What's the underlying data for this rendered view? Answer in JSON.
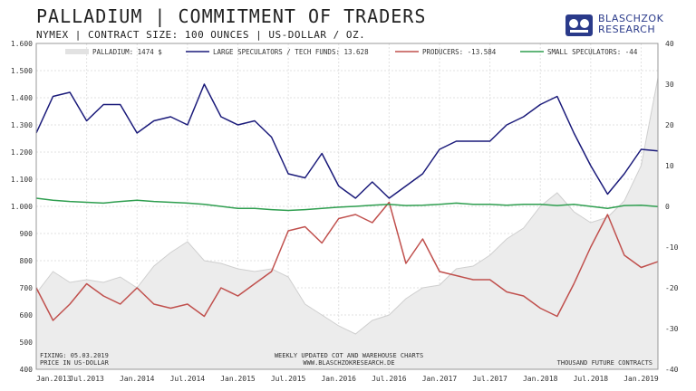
{
  "header": {
    "title": "PALLADIUM | COMMITMENT OF TRADERS",
    "subtitle": "NYMEX | CONTRACT SIZE: 100 OUNCES | US-DOLLAR / OZ."
  },
  "logo": {
    "line1": "BLASCHZOK",
    "line2": "RESEARCH"
  },
  "chart_data": {
    "type": "line",
    "x": [
      "2013-01",
      "2013-03",
      "2013-05",
      "2013-07",
      "2013-09",
      "2013-11",
      "2014-01",
      "2014-03",
      "2014-05",
      "2014-07",
      "2014-09",
      "2014-11",
      "2015-01",
      "2015-03",
      "2015-05",
      "2015-07",
      "2015-09",
      "2015-11",
      "2016-01",
      "2016-03",
      "2016-05",
      "2016-07",
      "2016-09",
      "2016-11",
      "2017-01",
      "2017-03",
      "2017-05",
      "2017-07",
      "2017-09",
      "2017-11",
      "2018-01",
      "2018-03",
      "2018-05",
      "2018-07",
      "2018-09",
      "2018-11",
      "2019-01",
      "2019-03"
    ],
    "series": [
      {
        "name": "PALLADIUM: 1474 $",
        "axis": "left",
        "style": "area",
        "color": "#d3d3d3",
        "values": [
          680,
          760,
          720,
          730,
          720,
          740,
          700,
          780,
          830,
          870,
          800,
          790,
          770,
          760,
          770,
          740,
          640,
          600,
          560,
          530,
          580,
          600,
          660,
          700,
          710,
          770,
          780,
          820,
          880,
          920,
          1000,
          1050,
          980,
          940,
          960,
          1020,
          1150,
          1474
        ]
      },
      {
        "name": "LARGE SPECULATORS / TECH FUNDS: 13.628",
        "axis": "right",
        "style": "line",
        "color": "#1a1a7a",
        "values": [
          18,
          27,
          28,
          21,
          25,
          25,
          18,
          21,
          22,
          20,
          30,
          22,
          20,
          21,
          17,
          8,
          7,
          13,
          5,
          2,
          6,
          2,
          5,
          8,
          14,
          16,
          16,
          16,
          20,
          22,
          25,
          27,
          18,
          10,
          3,
          8,
          14,
          13.628
        ]
      },
      {
        "name": "PRODUCERS: -13.584",
        "axis": "right",
        "style": "line",
        "color": "#c0504d",
        "values": [
          -20,
          -28,
          -24,
          -19,
          -22,
          -24,
          -20,
          -24,
          -25,
          -24,
          -27,
          -20,
          -22,
          -19,
          -16,
          -6,
          -5,
          -9,
          -3,
          -2,
          -4,
          1,
          -14,
          -8,
          -16,
          -17,
          -18,
          -18,
          -21,
          -22,
          -25,
          -27,
          -19,
          -10,
          -2,
          -12,
          -15,
          -13.584
        ]
      },
      {
        "name": "SMALL SPECULATORS: -44",
        "axis": "right",
        "style": "line",
        "color": "#2e9e4f",
        "values": [
          2,
          1.5,
          1.2,
          1,
          0.8,
          1.2,
          1.5,
          1.2,
          1,
          0.8,
          0.5,
          0,
          -0.5,
          -0.5,
          -0.8,
          -1,
          -0.8,
          -0.5,
          -0.2,
          0,
          0.3,
          0.5,
          0.2,
          0.3,
          0.5,
          0.8,
          0.5,
          0.5,
          0.3,
          0.5,
          0.5,
          0.2,
          0.5,
          0,
          -0.5,
          0.2,
          0.3,
          -0.044
        ]
      }
    ],
    "ylim_left": [
      400,
      1600
    ],
    "ylim_right": [
      -40,
      40
    ],
    "left_ticks": [
      "400",
      "500",
      "600",
      "700",
      "800",
      "900",
      "1.000",
      "1.100",
      "1.200",
      "1.300",
      "1.400",
      "1.500",
      "1.600"
    ],
    "right_ticks": [
      "-40",
      "-30",
      "-20",
      "-10",
      "0",
      "10",
      "20",
      "30",
      "40"
    ],
    "x_ticks": [
      {
        "label": "Jan.2013",
        "x": "2013-01"
      },
      {
        "label": "Jul.2013",
        "x": "2013-07"
      },
      {
        "label": "Jan.2014",
        "x": "2014-01"
      },
      {
        "label": "Jul.2014",
        "x": "2014-07"
      },
      {
        "label": "Jan.2015",
        "x": "2015-01"
      },
      {
        "label": "Jul.2015",
        "x": "2015-07"
      },
      {
        "label": "Jan.2016",
        "x": "2016-01"
      },
      {
        "label": "Jul.2016",
        "x": "2016-07"
      },
      {
        "label": "Jan.2017",
        "x": "2017-01"
      },
      {
        "label": "Jul.2017",
        "x": "2017-07"
      },
      {
        "label": "Jan.2018",
        "x": "2018-01"
      },
      {
        "label": "Jul.2018",
        "x": "2018-07"
      },
      {
        "label": "Jan.2019",
        "x": "2019-01"
      }
    ],
    "grid": true,
    "legend": "top"
  },
  "notes": {
    "fixing": "FIXING: 05.03.2019",
    "price": "PRICE  IN  US-DOLLAR",
    "center1": "WEEKLY  UPDATED  COT  AND  WAREHOUSE  CHARTS",
    "center2": "WWW.BLASCHZOKRESEARCH.DE",
    "right": "THOUSAND  FUTURE  CONTRACTS"
  }
}
